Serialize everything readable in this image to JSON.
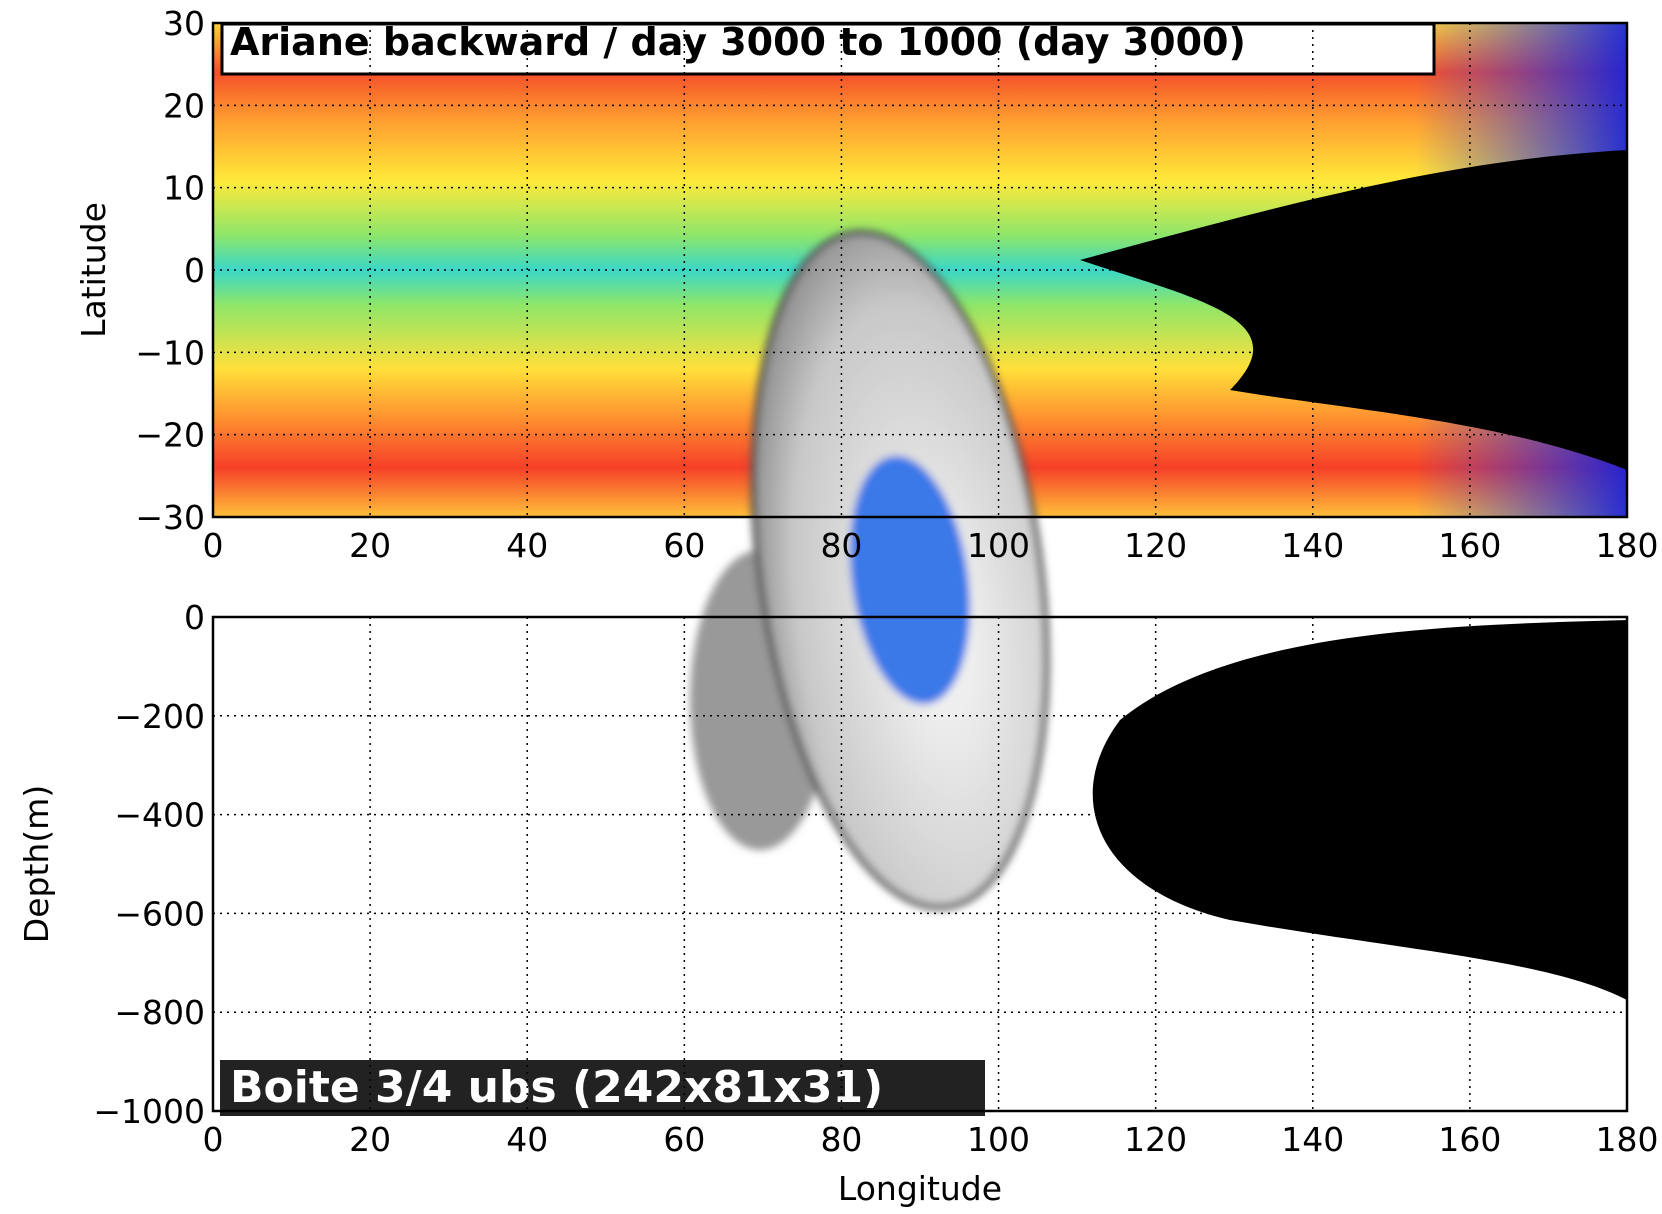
{
  "chart_data": [
    {
      "type": "contour",
      "annotation": "Ariane backward / day 3000 to 1000  (day 3000)",
      "ylabel": "Latitude",
      "xlim": [
        0,
        180
      ],
      "xticks": [
        0,
        20,
        40,
        60,
        80,
        100,
        120,
        140,
        160,
        180
      ],
      "ylim": [
        -30,
        30
      ],
      "yticks": [
        {
          "value": -30,
          "label": "−30"
        },
        {
          "value": -20,
          "label": "−20"
        },
        {
          "value": -10,
          "label": "−10"
        },
        0,
        10,
        20,
        30
      ],
      "grid": true
    },
    {
      "type": "line",
      "annotation": "Boite 3/4 ubs (242x81x31)",
      "xlabel": "Longitude",
      "ylabel": "Depth(m)",
      "xlim": [
        0,
        180
      ],
      "xticks": [
        0,
        20,
        40,
        60,
        80,
        100,
        120,
        140,
        160,
        180
      ],
      "ylim": [
        -1000,
        0
      ],
      "yticks": [
        {
          "value": -1000,
          "label": "−1000"
        },
        {
          "value": -800,
          "label": "−800"
        },
        {
          "value": -600,
          "label": "−600"
        },
        {
          "value": -400,
          "label": "−400"
        },
        {
          "value": -200,
          "label": "−200"
        },
        0
      ],
      "grid": true
    }
  ]
}
